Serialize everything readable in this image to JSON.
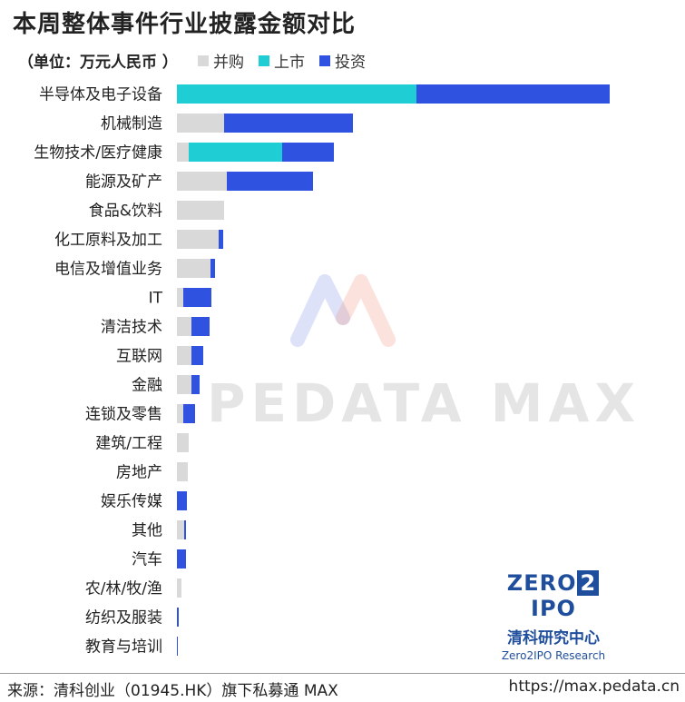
{
  "title": "本周整体事件行业披露金额对比",
  "unit": "（单位：万元人民币 ）",
  "colors": {
    "merger": "#d9d9d9",
    "ipo": "#1fcdd4",
    "investment": "#2f52e0"
  },
  "legend": [
    {
      "label": "并购",
      "color": "#d9d9d9"
    },
    {
      "label": "上市",
      "color": "#1fcdd4"
    },
    {
      "label": "投资",
      "color": "#2f52e0"
    }
  ],
  "chart_data": {
    "type": "bar",
    "orientation": "horizontal",
    "stacked": true,
    "categories": [
      "半导体及电子设备",
      "机械制造",
      "生物技术/医疗健康",
      "能源及矿产",
      "食品&饮料",
      "化工原料及加工",
      "电信及增值业务",
      "IT",
      "清洁技术",
      "互联网",
      "金融",
      "连锁及零售",
      "建筑/工程",
      "房地产",
      "娱乐传媒",
      "其他",
      "汽车",
      "农/林/牧/渔",
      "纺织及服装",
      "教育与培训"
    ],
    "series": [
      {
        "name": "并购",
        "values": [
          0,
          52,
          13,
          55,
          52,
          46,
          37,
          7,
          16,
          16,
          16,
          7,
          13,
          12,
          0,
          8,
          0,
          5,
          0,
          0
        ]
      },
      {
        "name": "上市",
        "values": [
          264,
          0,
          103,
          0,
          0,
          0,
          0,
          0,
          0,
          0,
          0,
          0,
          0,
          0,
          0,
          0,
          0,
          0,
          0,
          0
        ]
      },
      {
        "name": "投资",
        "values": [
          213,
          142,
          57,
          95,
          0,
          5,
          5,
          31,
          20,
          13,
          9,
          13,
          0,
          0,
          11,
          2,
          10,
          0,
          2,
          1
        ]
      }
    ],
    "xlim": [
      0,
      480
    ],
    "grid": false,
    "legend_position": "top"
  },
  "watermark": "PEDATA MAX",
  "brand": {
    "logo_left": "ZERO",
    "logo_mid": "2",
    "logo_right": "IPO",
    "cn": "清科研究中心",
    "en": "Zero2IPO Research"
  },
  "footer": {
    "source": "来源：清科创业（01945.HK）旗下私募通 MAX",
    "url": "https://max.pedata.cn"
  }
}
